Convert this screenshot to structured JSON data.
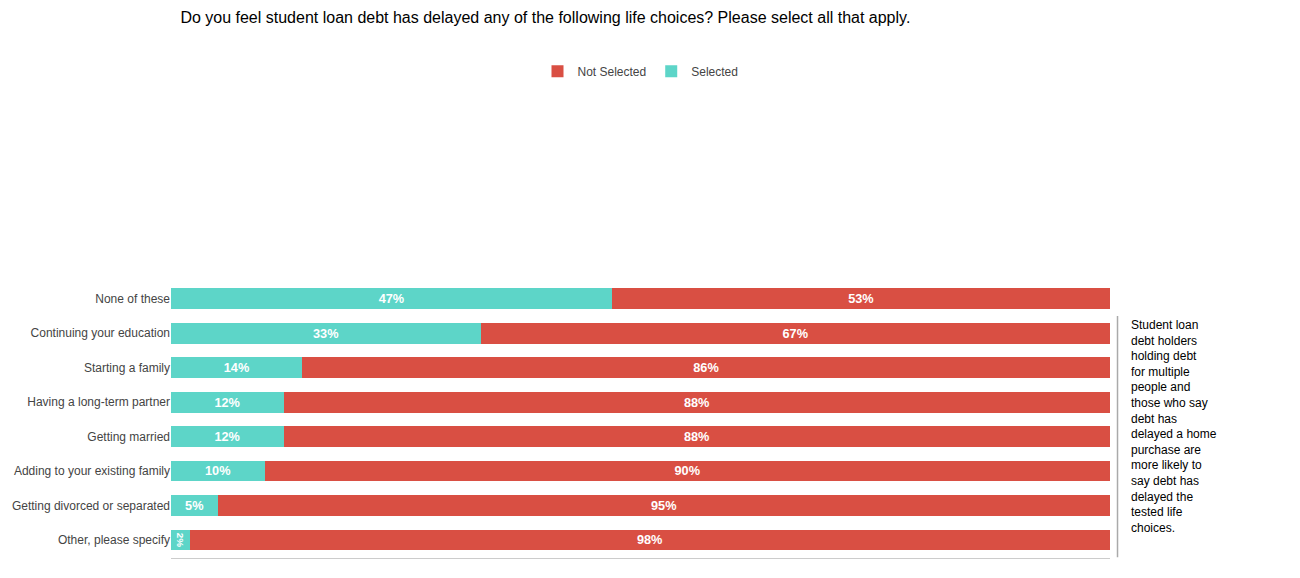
{
  "chart_data": {
    "type": "bar",
    "orientation": "horizontal",
    "stacked": true,
    "title": "Do you feel student loan debt has delayed any of the following life choices? Please select all that apply.",
    "categories": [
      "None of these",
      "Continuing your education",
      "Starting a family",
      "Having a long-term partner",
      "Getting married",
      "Adding to your existing family",
      "Getting divorced or separated",
      "Other, please specify"
    ],
    "series": [
      {
        "name": "Selected",
        "color": "#5dd5c8",
        "values": [
          47,
          33,
          14,
          12,
          12,
          10,
          5,
          2
        ],
        "value_labels": [
          "47%",
          "33%",
          "14%",
          "12%",
          "12%",
          "10%",
          "5%",
          "2%"
        ]
      },
      {
        "name": "Not Selected",
        "color": "#d94f43",
        "values": [
          53,
          67,
          86,
          88,
          88,
          90,
          95,
          98
        ],
        "value_labels": [
          "53%",
          "67%",
          "86%",
          "88%",
          "88%",
          "90%",
          "95%",
          "98%"
        ]
      }
    ],
    "xlim": [
      0,
      100
    ],
    "data_labels": true,
    "tick_labels": "y",
    "grid": false,
    "legend": "top",
    "annotations": [
      "Student loan\ndebt holders\nholding debt\nfor multiple\npeople and\nthose who say\ndebt has\ndelayed a home\npurchase are\nmore likely to\nsay debt has\ndelayed the\ntested life\nchoices."
    ]
  }
}
